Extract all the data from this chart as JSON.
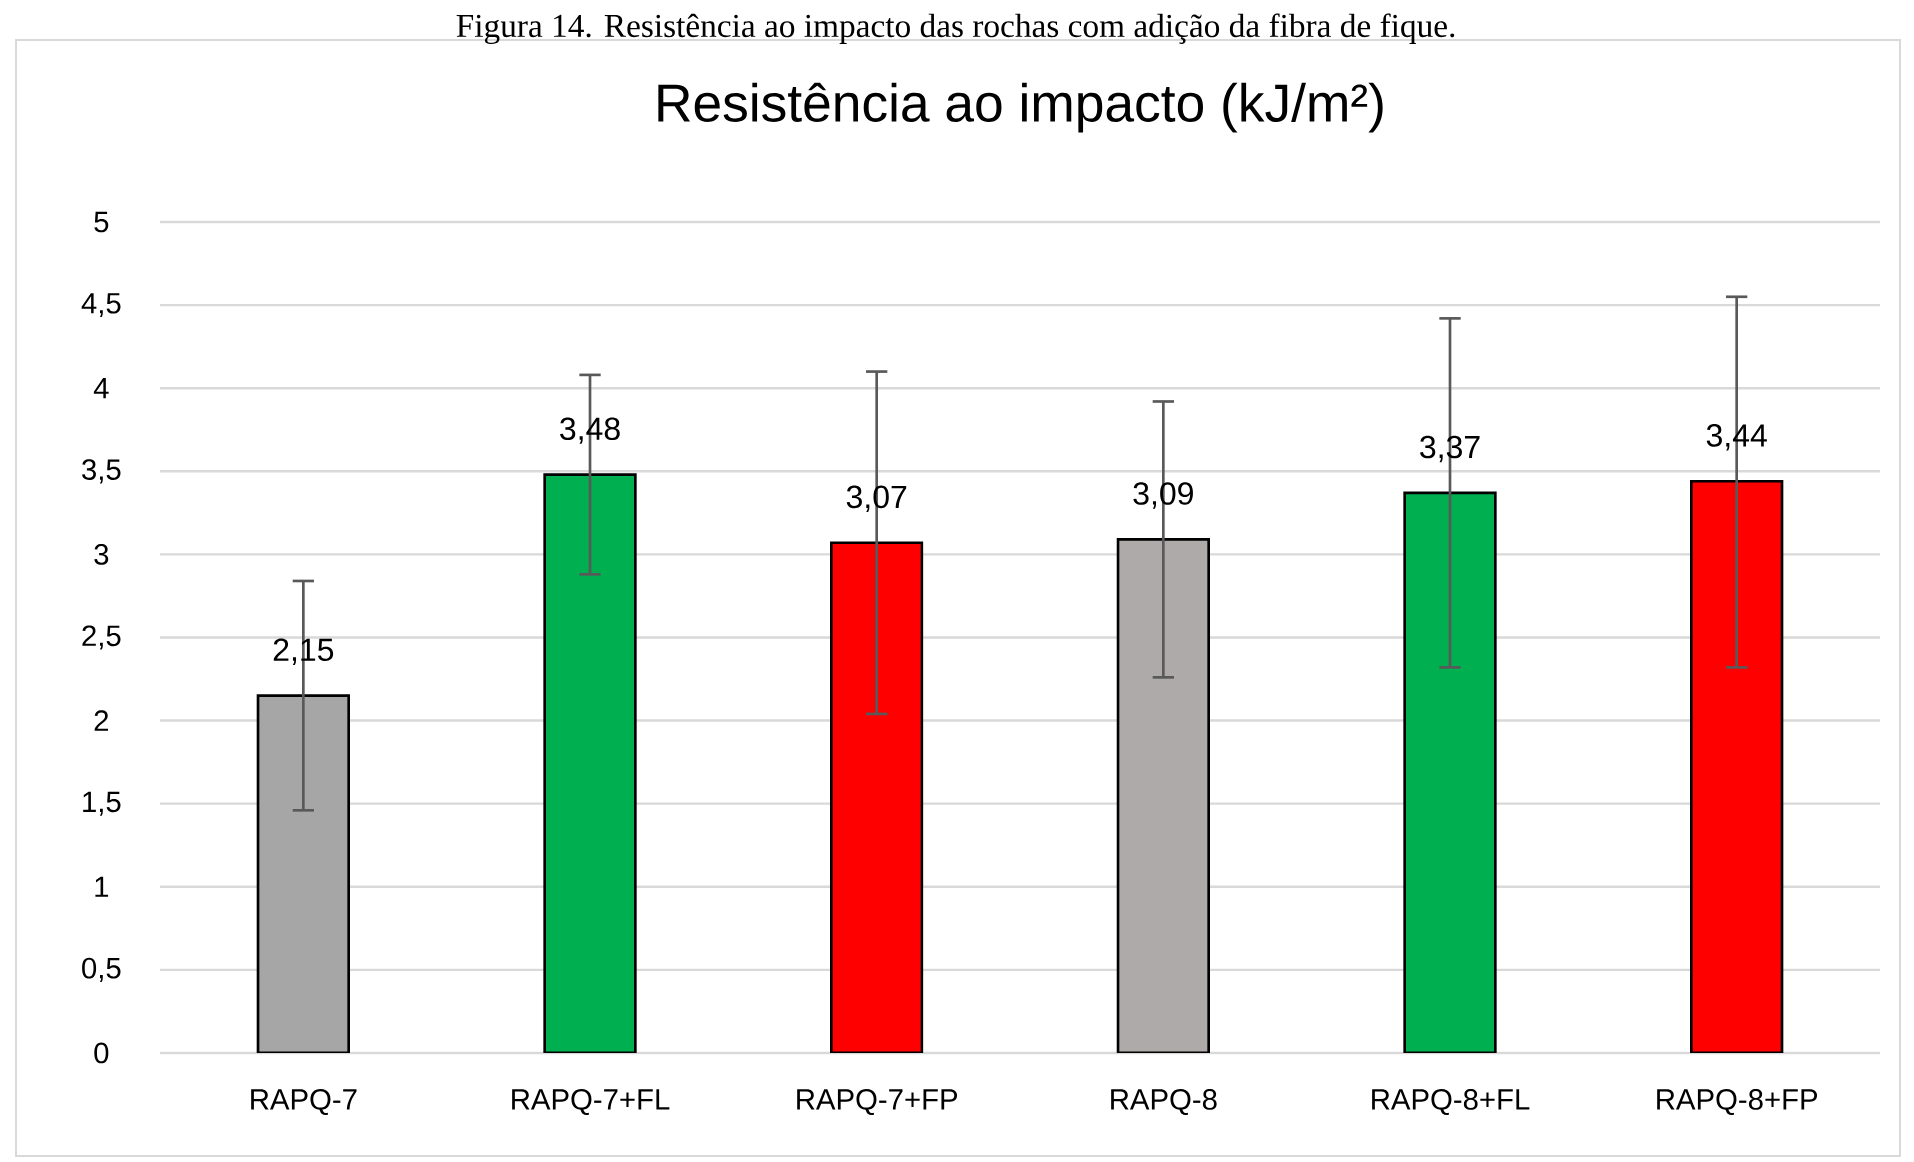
{
  "chart_data": {
    "type": "bar",
    "title": "Resistência ao impacto (kJ/m²)",
    "annotations": [
      "Figura 14. Resistência ao impacto das rochas com adição da fibra de fique."
    ],
    "categories": [
      "RAPQ-7",
      "RAPQ-7+FL",
      "RAPQ-7+FP",
      "RAPQ-8",
      "RAPQ-8+FL",
      "RAPQ-8+FP"
    ],
    "values": [
      2.15,
      3.48,
      3.07,
      3.09,
      3.37,
      3.44
    ],
    "value_labels": [
      "2,15",
      "3,48",
      "3,07",
      "3,09",
      "3,37",
      "3,44"
    ],
    "errors": [
      [
        1.46,
        2.84
      ],
      [
        2.88,
        4.08
      ],
      [
        2.04,
        4.1
      ],
      [
        2.26,
        3.92
      ],
      [
        2.32,
        4.42
      ],
      [
        2.32,
        4.55
      ]
    ],
    "colors": [
      "#a6a6a6",
      "#00b050",
      "#ff0000",
      "#aeaaaa",
      "#00b050",
      "#ff0000"
    ],
    "ylim": [
      0,
      5
    ],
    "yticks": [
      0,
      {
        "value": 0.5,
        "label": "0,5"
      },
      1,
      {
        "value": 1.5,
        "label": "1,5"
      },
      2,
      {
        "value": 2.5,
        "label": "2,5"
      },
      3,
      {
        "value": 3.5,
        "label": "3,5"
      },
      4,
      {
        "value": 4.5,
        "label": "4,5"
      },
      5
    ],
    "grid": "y"
  }
}
